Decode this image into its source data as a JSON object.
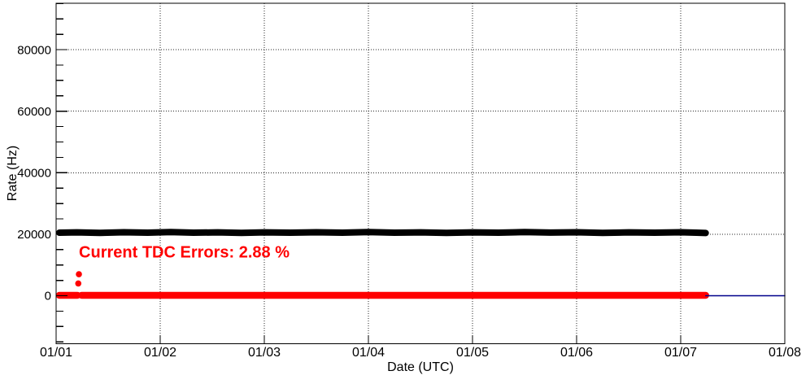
{
  "page": {
    "background": "#ffffff"
  },
  "chart_data": {
    "type": "scatter",
    "title": "",
    "xlabel": "Date (UTC)",
    "ylabel": "Rate (Hz)",
    "grid": true,
    "x_axis": {
      "tick_labels": [
        "01/01",
        "01/02",
        "01/03",
        "01/04",
        "01/05",
        "01/06",
        "01/07",
        "01/08"
      ],
      "tick_days": [
        0,
        1,
        2,
        3,
        4,
        5,
        6,
        7
      ],
      "range_days": [
        0,
        7
      ],
      "grid_days": [
        1,
        2,
        3,
        4,
        5,
        6
      ]
    },
    "y_axis": {
      "major_ticks": [
        0,
        20000,
        40000,
        60000,
        80000
      ],
      "major_tick_labels": [
        "0",
        "20000",
        "40000",
        "60000",
        "80000"
      ],
      "minor_step": 5000,
      "minor_range": [
        -15000,
        95000
      ],
      "range": [
        -15600,
        95100
      ],
      "grid_values": [
        20000,
        40000,
        60000,
        80000
      ]
    },
    "series": [
      {
        "name": "black-rate-band",
        "color": "#000000",
        "style": "thick-marker-band",
        "stroke_px": 8,
        "points": [
          [
            0.031,
            20500
          ],
          [
            0.2,
            20600
          ],
          [
            0.42,
            20450
          ],
          [
            0.65,
            20650
          ],
          [
            0.88,
            20500
          ],
          [
            1.1,
            20700
          ],
          [
            1.32,
            20500
          ],
          [
            1.55,
            20600
          ],
          [
            1.78,
            20450
          ],
          [
            2.0,
            20600
          ],
          [
            2.25,
            20500
          ],
          [
            2.5,
            20650
          ],
          [
            2.75,
            20500
          ],
          [
            3.0,
            20700
          ],
          [
            3.25,
            20500
          ],
          [
            3.5,
            20600
          ],
          [
            3.75,
            20450
          ],
          [
            4.0,
            20600
          ],
          [
            4.25,
            20500
          ],
          [
            4.5,
            20700
          ],
          [
            4.75,
            20550
          ],
          [
            5.0,
            20650
          ],
          [
            5.25,
            20450
          ],
          [
            5.5,
            20600
          ],
          [
            5.75,
            20500
          ],
          [
            6.0,
            20650
          ],
          [
            6.15,
            20500
          ],
          [
            6.24,
            20400
          ]
        ]
      },
      {
        "name": "red-tdc-error-band",
        "color": "#ff0000",
        "style": "thick-marker-band",
        "stroke_px": 8.5,
        "segments": [
          [
            [
              0.031,
              150
            ],
            [
              0.205,
              150
            ]
          ],
          [
            [
              0.245,
              150
            ],
            [
              6.24,
              150
            ]
          ]
        ]
      },
      {
        "name": "red-tdc-error-spikes",
        "color": "#ff0000",
        "style": "dots",
        "radius_px": 3.8,
        "points": [
          [
            0.219,
            7000
          ],
          [
            0.213,
            4000
          ]
        ]
      },
      {
        "name": "blue-zero-baseline",
        "color": "#00008b",
        "style": "line",
        "stroke_px": 1.5,
        "points": [
          [
            6.24,
            0
          ],
          [
            7.0,
            0
          ]
        ]
      }
    ],
    "annotation": {
      "text": "Current TDC Errors: 2.88 %",
      "color": "#ff0000",
      "x_days": 0.219,
      "y_hz": 14000
    }
  }
}
